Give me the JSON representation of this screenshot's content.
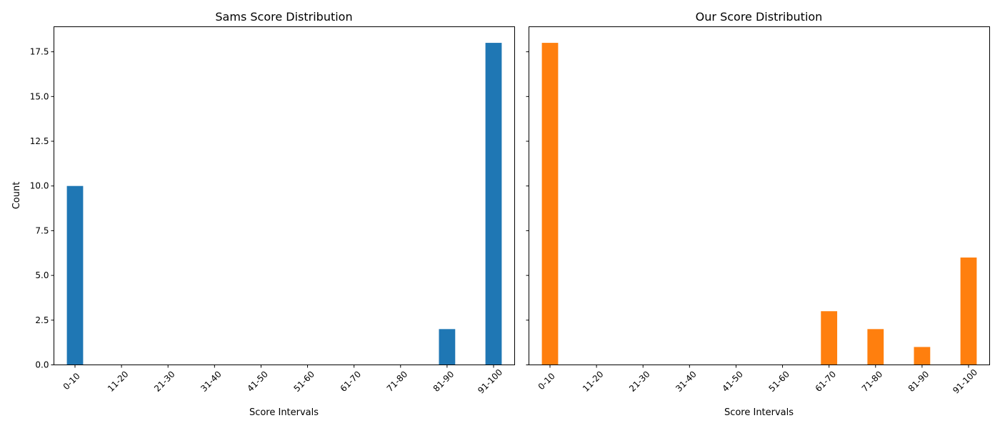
{
  "chart_data": [
    {
      "type": "bar",
      "title": "Sams Score Distribution",
      "xlabel": "Score Intervals",
      "ylabel": "Count",
      "categories": [
        "0-10",
        "11-20",
        "21-30",
        "31-40",
        "41-50",
        "51-60",
        "61-70",
        "71-80",
        "81-90",
        "91-100"
      ],
      "values": [
        10,
        0,
        0,
        0,
        0,
        0,
        0,
        0,
        2,
        18
      ],
      "ylim": [
        0,
        18.9
      ],
      "yticks": [
        "0.0",
        "2.5",
        "5.0",
        "7.5",
        "10.0",
        "12.5",
        "15.0",
        "17.5"
      ],
      "color": "#1f77b4",
      "grid": false
    },
    {
      "type": "bar",
      "title": "Our Score Distribution",
      "xlabel": "Score Intervals",
      "ylabel": "",
      "categories": [
        "0-10",
        "11-20",
        "21-30",
        "31-40",
        "41-50",
        "51-60",
        "61-70",
        "71-80",
        "81-90",
        "91-100"
      ],
      "values": [
        18,
        0,
        0,
        0,
        0,
        0,
        3,
        2,
        1,
        6
      ],
      "ylim": [
        0,
        18.9
      ],
      "yticks": [],
      "color": "#ff7f0e",
      "grid": false
    }
  ]
}
